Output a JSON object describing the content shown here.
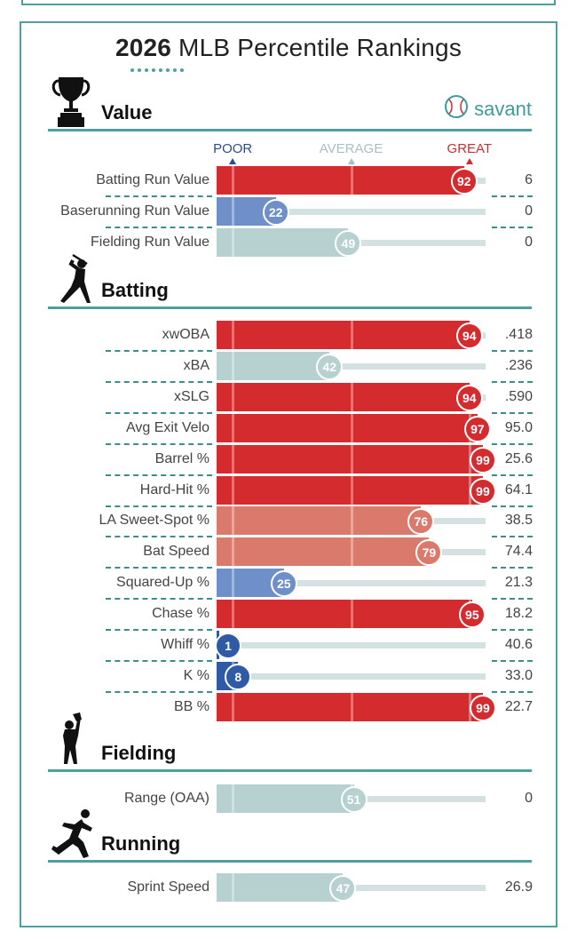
{
  "title_year": "2026",
  "title_text": "MLB Percentile Rankings",
  "brand": "savant",
  "scale": {
    "poor": "POOR",
    "average": "AVERAGE",
    "great": "GREAT"
  },
  "colors": {
    "teal": "#4e9f9f",
    "great": "#d42b2f",
    "above": "#d97a6c",
    "poor": "#2e5aa6",
    "below": "#6e8fc7",
    "average": "#b7d0d0"
  },
  "chart_data": {
    "type": "table",
    "title": "2026 MLB Percentile Rankings",
    "sections": [
      {
        "name": "Value",
        "icon": "trophy-icon",
        "rows": [
          {
            "metric": "Batting Run Value",
            "percentile": 92,
            "value": "6"
          },
          {
            "metric": "Baserunning Run Value",
            "percentile": 22,
            "value": "0"
          },
          {
            "metric": "Fielding Run Value",
            "percentile": 49,
            "value": "0"
          }
        ]
      },
      {
        "name": "Batting",
        "icon": "batter-icon",
        "rows": [
          {
            "metric": "xwOBA",
            "percentile": 94,
            "value": ".418"
          },
          {
            "metric": "xBA",
            "percentile": 42,
            "value": ".236"
          },
          {
            "metric": "xSLG",
            "percentile": 94,
            "value": ".590"
          },
          {
            "metric": "Avg Exit Velo",
            "percentile": 97,
            "value": "95.0"
          },
          {
            "metric": "Barrel %",
            "percentile": 99,
            "value": "25.6"
          },
          {
            "metric": "Hard-Hit %",
            "percentile": 99,
            "value": "64.1"
          },
          {
            "metric": "LA Sweet-Spot %",
            "percentile": 76,
            "value": "38.5"
          },
          {
            "metric": "Bat Speed",
            "percentile": 79,
            "value": "74.4"
          },
          {
            "metric": "Squared-Up %",
            "percentile": 25,
            "value": "21.3"
          },
          {
            "metric": "Chase %",
            "percentile": 95,
            "value": "18.2"
          },
          {
            "metric": "Whiff %",
            "percentile": 1,
            "value": "40.6"
          },
          {
            "metric": "K %",
            "percentile": 8,
            "value": "33.0"
          },
          {
            "metric": "BB %",
            "percentile": 99,
            "value": "22.7"
          }
        ]
      },
      {
        "name": "Fielding",
        "icon": "fielder-icon",
        "rows": [
          {
            "metric": "Range (OAA)",
            "percentile": 51,
            "value": "0"
          }
        ]
      },
      {
        "name": "Running",
        "icon": "runner-icon",
        "rows": [
          {
            "metric": "Sprint Speed",
            "percentile": 47,
            "value": "26.9"
          }
        ]
      }
    ]
  }
}
